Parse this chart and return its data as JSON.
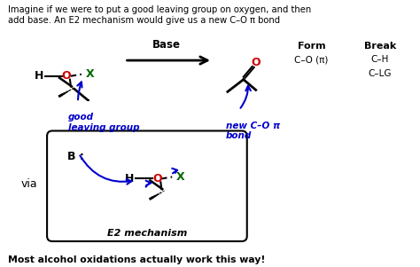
{
  "bg_color": "#ffffff",
  "title_text": "Imagine if we were to put a good leaving group on oxygen, and then\nadd base. An E2 mechanism would give us a new C–O π bond",
  "footer_text": "Most alcohol oxidations actually work this way!",
  "form_label": "Form",
  "break_label": "Break",
  "form_item1": "C–O (π)",
  "break_item1": "C–H",
  "break_item2": "C–LG",
  "base_label": "Base",
  "via_label": "via",
  "good_lg_label": "good\nleaving group",
  "new_bond_label": "new C–O π\nbond",
  "e2_label": "E2 mechanism",
  "blue": "#0000cc",
  "red": "#cc0000",
  "green": "#006600",
  "black": "#000000"
}
